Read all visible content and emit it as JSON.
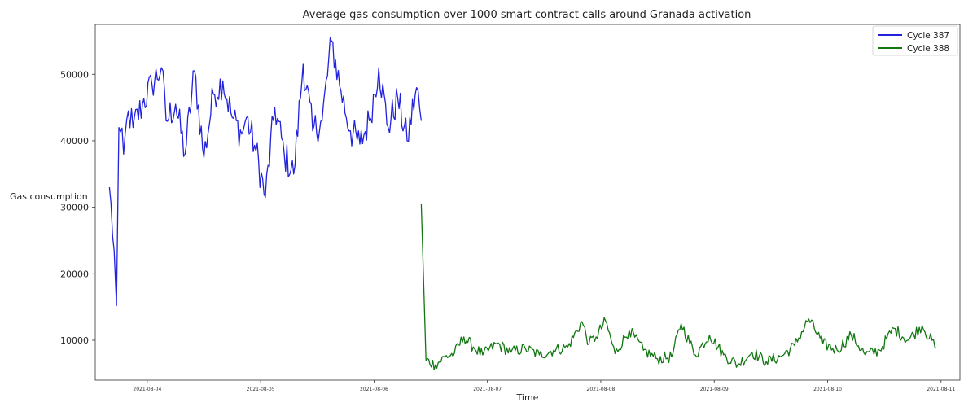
{
  "chart_data": {
    "type": "line",
    "title": "Average gas consumption over 1000 smart contract calls around Granada activation",
    "xlabel": "Time",
    "ylabel": "Gas consumption",
    "x_axis_kind": "date",
    "xlim": [
      "2021-08-03T13:00",
      "2021-08-11T04:00"
    ],
    "ylim": [
      4000,
      57500
    ],
    "yticks": [
      10000,
      20000,
      30000,
      40000,
      50000
    ],
    "xticks": [
      "2021-08-04",
      "2021-08-05",
      "2021-08-06",
      "2021-08-07",
      "2021-08-08",
      "2021-08-09",
      "2021-08-10",
      "2021-08-11"
    ],
    "grid": false,
    "legend_position": "top-right",
    "series": [
      {
        "name": "Cycle 387",
        "color": "#2222dd",
        "x": [
          "2021-08-03T16:00",
          "2021-08-03T17:00",
          "2021-08-03T17:30",
          "2021-08-03T18:00",
          "2021-08-03T19:00",
          "2021-08-03T20:00",
          "2021-08-03T21:00",
          "2021-08-03T23:00",
          "2021-08-04T01:00",
          "2021-08-04T03:00",
          "2021-08-04T04:00",
          "2021-08-04T06:00",
          "2021-08-04T08:00",
          "2021-08-04T10:00",
          "2021-08-04T12:00",
          "2021-08-04T14:00",
          "2021-08-04T16:00",
          "2021-08-04T18:00",
          "2021-08-04T20:00",
          "2021-08-04T21:00",
          "2021-08-04T23:00",
          "2021-08-05T01:00",
          "2021-08-05T03:00",
          "2021-08-05T05:00",
          "2021-08-05T07:00",
          "2021-08-05T09:00",
          "2021-08-05T11:00",
          "2021-08-05T13:00",
          "2021-08-05T15:00",
          "2021-08-05T17:00",
          "2021-08-05T19:00",
          "2021-08-05T21:00",
          "2021-08-05T23:00",
          "2021-08-06T01:00",
          "2021-08-06T03:00",
          "2021-08-06T05:00",
          "2021-08-06T07:00",
          "2021-08-06T09:00",
          "2021-08-06T10:00"
        ],
        "y": [
          33000,
          23500,
          15200,
          42000,
          38000,
          44500,
          42000,
          45500,
          48500,
          51000,
          43000,
          45500,
          38000,
          50500,
          37500,
          47000,
          49000,
          43500,
          41000,
          43500,
          38500,
          31500,
          45000,
          38000,
          35000,
          51500,
          41500,
          43000,
          55000,
          47500,
          41500,
          39500,
          43000,
          51000,
          42000,
          46500,
          40000,
          48000,
          43000
        ]
      },
      {
        "name": "Cycle 388",
        "color": "#117711",
        "x": [
          "2021-08-06T10:00",
          "2021-08-06T11:00",
          "2021-08-06T13:00",
          "2021-08-06T15:00",
          "2021-08-06T17:00",
          "2021-08-06T19:00",
          "2021-08-06T21:00",
          "2021-08-06T23:00",
          "2021-08-07T02:00",
          "2021-08-07T05:00",
          "2021-08-07T08:00",
          "2021-08-07T11:00",
          "2021-08-07T14:00",
          "2021-08-07T17:00",
          "2021-08-07T20:00",
          "2021-08-07T21:30",
          "2021-08-07T23:00",
          "2021-08-08T01:00",
          "2021-08-08T03:00",
          "2021-08-08T06:00",
          "2021-08-08T09:00",
          "2021-08-08T12:00",
          "2021-08-08T15:00",
          "2021-08-08T17:00",
          "2021-08-08T20:00",
          "2021-08-08T23:00",
          "2021-08-09T02:00",
          "2021-08-09T05:00",
          "2021-08-09T08:00",
          "2021-08-09T11:00",
          "2021-08-09T14:00",
          "2021-08-09T17:00",
          "2021-08-09T20:00",
          "2021-08-09T23:00",
          "2021-08-10T02:00",
          "2021-08-10T05:00",
          "2021-08-10T08:00",
          "2021-08-10T11:00",
          "2021-08-10T14:00",
          "2021-08-10T17:00",
          "2021-08-10T20:00",
          "2021-08-10T23:00"
        ],
        "y": [
          30500,
          7000,
          6300,
          7500,
          8000,
          10500,
          9000,
          7800,
          9500,
          8200,
          8800,
          7800,
          8500,
          9000,
          12800,
          9500,
          10500,
          12900,
          8000,
          11500,
          8500,
          7200,
          7500,
          12500,
          7800,
          10800,
          7800,
          6300,
          8200,
          6800,
          7500,
          9200,
          13200,
          9500,
          8500,
          10800,
          7800,
          8500,
          11800,
          10000,
          12200,
          8800
        ]
      }
    ]
  }
}
